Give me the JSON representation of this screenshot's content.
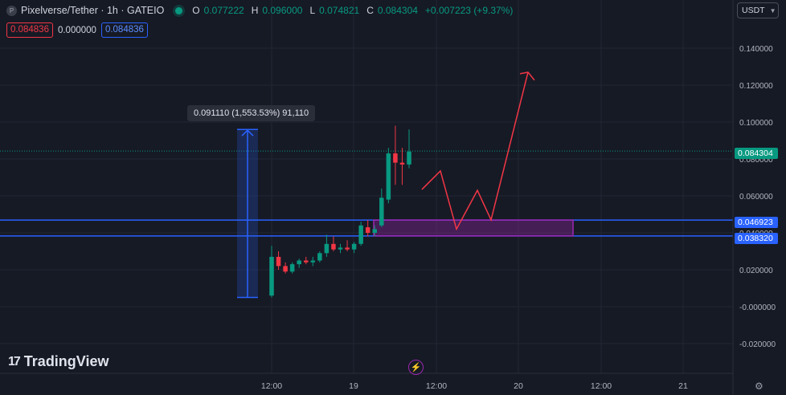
{
  "header": {
    "symbol_icon": "P",
    "title": "Pixelverse/Tether · 1h · GATEIO",
    "ohlc": [
      {
        "k": "O",
        "v": "0.077222"
      },
      {
        "k": "H",
        "v": "0.096000"
      },
      {
        "k": "L",
        "v": "0.074821"
      },
      {
        "k": "C",
        "v": "0.084304"
      },
      {
        "k": "",
        "v": "+0.007223 (+9.37%)"
      }
    ]
  },
  "trade": {
    "sell": "0.084836",
    "spread": "0.000000",
    "buy": "0.084836"
  },
  "currency_button": {
    "label": "USDT",
    "icon": "chevron-down-icon"
  },
  "measure_label": "0.091110 (1,553.53%) 91,110",
  "price_labels": {
    "last": "0.084304",
    "level_upper": "0.046923",
    "level_lower": "0.038320"
  },
  "brand": {
    "mark": "17",
    "name": "TradingView"
  },
  "footer": {
    "bolt_icon": "lightning-icon",
    "settings_icon": "gear-icon"
  },
  "colors": {
    "background": "#161a25",
    "up": "#089981",
    "down": "#f23645",
    "line": "#2962ff",
    "zone": "#9c27b0",
    "projection": "#f23645"
  },
  "chart_data": {
    "type": "candlestick",
    "x_ticks": [
      "12:00",
      "19",
      "12:00",
      "20",
      "12:00",
      "21"
    ],
    "y_ticks": [
      "0.140000",
      "0.120000",
      "0.100000",
      "0.080000",
      "0.060000",
      "0.040000",
      "0.020000",
      "-0.000000",
      "-0.020000"
    ],
    "ylim": [
      -0.027,
      0.153
    ],
    "grid": true,
    "candles": [
      {
        "o": 0.006,
        "h": 0.033,
        "l": 0.005,
        "c": 0.027
      },
      {
        "o": 0.027,
        "h": 0.03,
        "l": 0.02,
        "c": 0.022
      },
      {
        "o": 0.022,
        "h": 0.024,
        "l": 0.018,
        "c": 0.019
      },
      {
        "o": 0.019,
        "h": 0.024,
        "l": 0.018,
        "c": 0.023
      },
      {
        "o": 0.023,
        "h": 0.026,
        "l": 0.021,
        "c": 0.025
      },
      {
        "o": 0.025,
        "h": 0.027,
        "l": 0.023,
        "c": 0.024
      },
      {
        "o": 0.024,
        "h": 0.027,
        "l": 0.022,
        "c": 0.025
      },
      {
        "o": 0.025,
        "h": 0.03,
        "l": 0.024,
        "c": 0.029
      },
      {
        "o": 0.029,
        "h": 0.039,
        "l": 0.027,
        "c": 0.034
      },
      {
        "o": 0.034,
        "h": 0.038,
        "l": 0.03,
        "c": 0.031
      },
      {
        "o": 0.031,
        "h": 0.034,
        "l": 0.029,
        "c": 0.032
      },
      {
        "o": 0.032,
        "h": 0.036,
        "l": 0.03,
        "c": 0.031
      },
      {
        "o": 0.031,
        "h": 0.035,
        "l": 0.029,
        "c": 0.034
      },
      {
        "o": 0.034,
        "h": 0.046,
        "l": 0.033,
        "c": 0.044
      },
      {
        "o": 0.043,
        "h": 0.047,
        "l": 0.038,
        "c": 0.04
      },
      {
        "o": 0.04,
        "h": 0.044,
        "l": 0.038,
        "c": 0.042
      },
      {
        "o": 0.044,
        "h": 0.064,
        "l": 0.043,
        "c": 0.059
      },
      {
        "o": 0.058,
        "h": 0.086,
        "l": 0.056,
        "c": 0.083
      },
      {
        "o": 0.083,
        "h": 0.098,
        "l": 0.066,
        "c": 0.078
      },
      {
        "o": 0.078,
        "h": 0.086,
        "l": 0.066,
        "c": 0.077
      },
      {
        "o": 0.077,
        "h": 0.096,
        "l": 0.075,
        "c": 0.084
      }
    ],
    "last_price": 0.084304,
    "levels": [
      0.046923,
      0.03832
    ],
    "measure": {
      "from": 0.005,
      "to": 0.096
    },
    "zone": {
      "top": 0.046923,
      "bottom": 0.03832
    },
    "projection": [
      0.0635,
      0.0735,
      0.042,
      0.063,
      0.047,
      0.127
    ]
  }
}
